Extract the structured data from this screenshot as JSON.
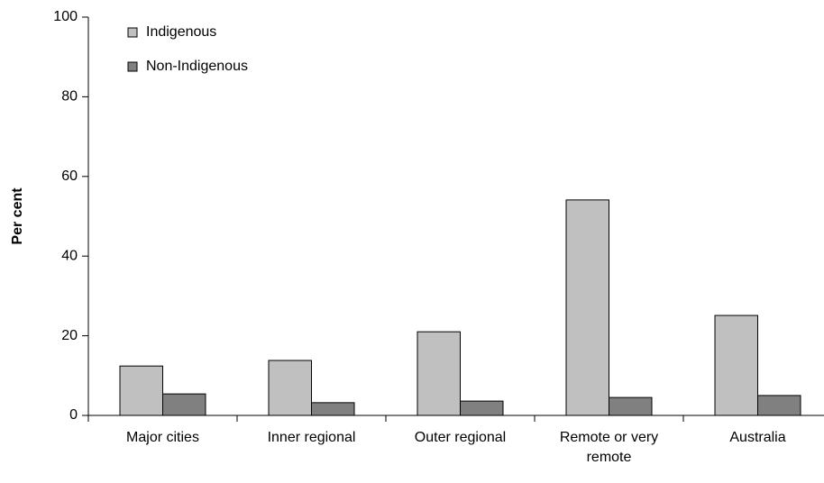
{
  "chart_data": {
    "type": "bar",
    "y_label": "Per cent",
    "categories": [
      "Major cities",
      "Inner regional",
      "Outer regional",
      "Remote or very remote",
      "Australia"
    ],
    "series": [
      {
        "name": "Indigenous",
        "color": "#c0c0c0",
        "values": [
          12.4,
          13.8,
          21.0,
          54.1,
          25.1
        ]
      },
      {
        "name": "Non-Indigenous",
        "color": "#808080",
        "values": [
          5.4,
          3.2,
          3.6,
          4.5,
          5.0
        ]
      }
    ],
    "ylim": [
      0,
      100
    ],
    "yticks": [
      0,
      20,
      40,
      60,
      80,
      100
    ],
    "grid": false,
    "legend": "upper left"
  }
}
